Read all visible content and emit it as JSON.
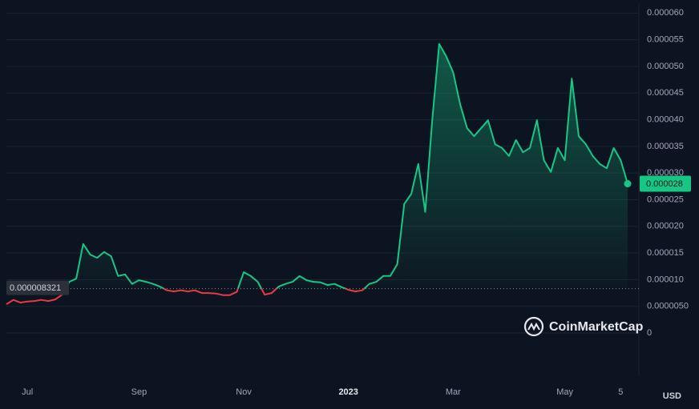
{
  "chart_data": {
    "type": "line",
    "categories": [
      null,
      null,
      null,
      "Jul",
      null,
      null,
      null,
      null,
      null,
      null,
      null,
      null,
      null,
      null,
      null,
      null,
      null,
      null,
      null,
      "Sep",
      null,
      null,
      null,
      null,
      null,
      null,
      null,
      null,
      null,
      null,
      null,
      null,
      null,
      null,
      "Nov",
      null,
      null,
      null,
      null,
      null,
      null,
      null,
      null,
      null,
      null,
      null,
      null,
      null,
      null,
      "2023",
      null,
      null,
      null,
      null,
      null,
      null,
      null,
      null,
      null,
      null,
      null,
      null,
      null,
      null,
      "Mar",
      null,
      null,
      null,
      null,
      null,
      null,
      null,
      null,
      null,
      null,
      null,
      null,
      null,
      null,
      null,
      "May",
      null,
      null,
      null,
      null,
      null,
      null,
      null,
      "5",
      null
    ],
    "values": [
      5.4e-06,
      6.2e-06,
      5.7e-06,
      5.9e-06,
      6e-06,
      6.2e-06,
      6e-06,
      6.3e-06,
      7.2e-06,
      9.6e-06,
      1.02e-05,
      1.67e-05,
      1.47e-05,
      1.41e-05,
      1.52e-05,
      1.44e-05,
      1.07e-05,
      1.1e-05,
      9.2e-06,
      9.9e-06,
      9.6e-06,
      9.2e-06,
      8.7e-06,
      8e-06,
      7.8e-06,
      8e-06,
      7.8e-06,
      8e-06,
      7.5e-06,
      7.5e-06,
      7.4e-06,
      7.1e-06,
      7.1e-06,
      7.7e-06,
      1.14e-05,
      1.07e-05,
      9.6e-06,
      7.2e-06,
      7.5e-06,
      8.7e-06,
      9.2e-06,
      9.6e-06,
      1.07e-05,
      9.9e-06,
      9.6e-06,
      9.5e-06,
      9e-06,
      9.2e-06,
      8.6e-06,
      8.1e-06,
      7.8e-06,
      8e-06,
      9.2e-06,
      9.6e-06,
      1.07e-05,
      1.07e-05,
      1.29e-05,
      2.42e-05,
      2.61e-05,
      3.17e-05,
      2.27e-05,
      3.99e-05,
      5.42e-05,
      5.19e-05,
      4.89e-05,
      4.29e-05,
      3.84e-05,
      3.69e-05,
      3.84e-05,
      3.99e-05,
      3.54e-05,
      3.47e-05,
      3.32e-05,
      3.62e-05,
      3.39e-05,
      3.47e-05,
      3.99e-05,
      3.24e-05,
      3.02e-05,
      3.47e-05,
      3.24e-05,
      4.77e-05,
      3.69e-05,
      3.54e-05,
      3.32e-05,
      3.17e-05,
      3.09e-05,
      3.47e-05,
      3.24e-05,
      2.8e-05
    ],
    "color": "#16c784",
    "down_color": "#ea3943",
    "reference_line": 8.321e-06,
    "ylim": [
      -8.1e-06,
      6.17e-05
    ],
    "yticks": [
      0,
      {
        "value": 5e-06,
        "label": "0.0000050"
      },
      {
        "value": 1e-05,
        "label": "0.000010"
      },
      {
        "value": 1.5e-05,
        "label": "0.000015"
      },
      {
        "value": 2e-05,
        "label": "0.000020"
      },
      {
        "value": 2.5e-05,
        "label": "0.000025"
      },
      {
        "value": 3e-05,
        "label": "0.000030"
      },
      {
        "value": 3.5e-05,
        "label": "0.000035"
      },
      {
        "value": 4e-05,
        "label": "0.000040"
      },
      {
        "value": 4.5e-05,
        "label": "0.000045"
      },
      {
        "value": 5e-05,
        "label": "0.000050"
      },
      {
        "value": 5.5e-05,
        "label": "0.000055"
      },
      {
        "value": 6e-05,
        "label": "0.000060"
      }
    ],
    "grid": true,
    "currency": "USD",
    "watermark": "CoinMarketCap"
  }
}
